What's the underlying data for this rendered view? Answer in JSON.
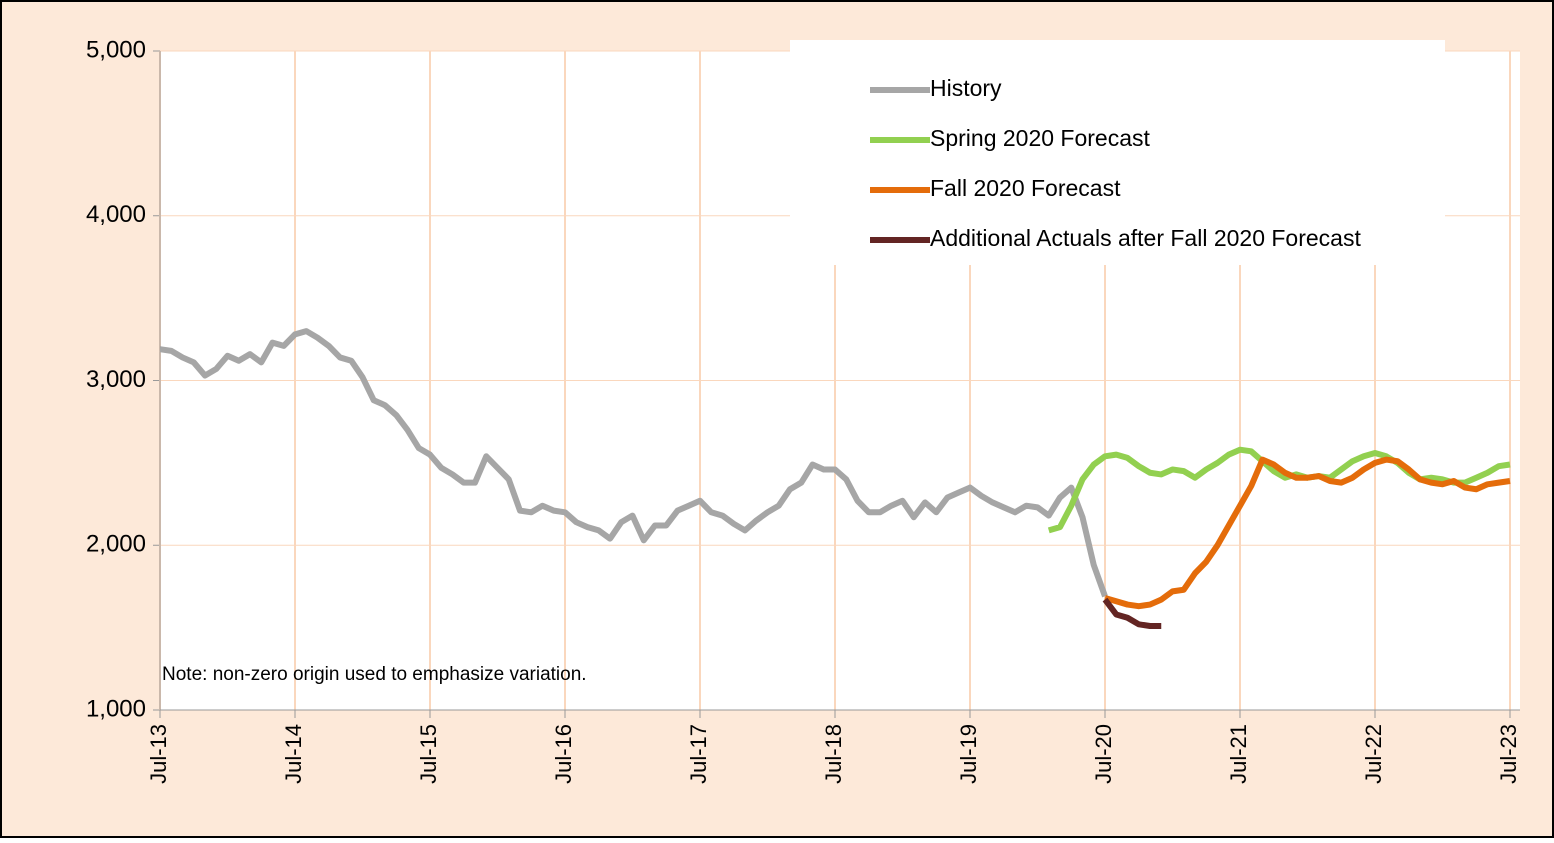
{
  "chart_data": {
    "type": "line",
    "annotation": "Note: non-zero origin used to emphasize variation.",
    "categories": [
      "Jul-13",
      null,
      null,
      null,
      null,
      null,
      null,
      null,
      null,
      null,
      null,
      null,
      "Jul-14",
      null,
      null,
      null,
      null,
      null,
      null,
      null,
      null,
      null,
      null,
      null,
      "Jul-15",
      null,
      null,
      null,
      null,
      null,
      null,
      null,
      null,
      null,
      null,
      null,
      "Jul-16",
      null,
      null,
      null,
      null,
      null,
      null,
      null,
      null,
      null,
      null,
      null,
      "Jul-17",
      null,
      null,
      null,
      null,
      null,
      null,
      null,
      null,
      null,
      null,
      null,
      "Jul-18",
      null,
      null,
      null,
      null,
      null,
      null,
      null,
      null,
      null,
      null,
      null,
      "Jul-19",
      null,
      null,
      null,
      null,
      null,
      null,
      null,
      null,
      null,
      null,
      null,
      "Jul-20",
      null,
      null,
      null,
      null,
      null,
      null,
      null,
      null,
      null,
      null,
      null,
      "Jul-21",
      null,
      null,
      null,
      null,
      null,
      null,
      null,
      null,
      null,
      null,
      null,
      "Jul-22",
      null,
      null,
      null,
      null,
      null,
      null,
      null,
      null,
      null,
      null,
      null,
      "Jul-23"
    ],
    "series": [
      {
        "name": "History",
        "color": "#a6a6a6",
        "values": [
          3190,
          3180,
          3140,
          3110,
          3030,
          3070,
          3150,
          3120,
          3160,
          3110,
          3230,
          3210,
          3280,
          3300,
          3260,
          3210,
          3140,
          3120,
          3020,
          2880,
          2850,
          2790,
          2700,
          2590,
          2550,
          2470,
          2430,
          2380,
          2380,
          2540,
          2470,
          2400,
          2210,
          2200,
          2240,
          2210,
          2200,
          2140,
          2110,
          2090,
          2040,
          2140,
          2180,
          2030,
          2120,
          2120,
          2210,
          2240,
          2270,
          2200,
          2180,
          2130,
          2090,
          2150,
          2200,
          2240,
          2340,
          2380,
          2490,
          2460,
          2460,
          2400,
          2270,
          2200,
          2200,
          2240,
          2270,
          2170,
          2260,
          2200,
          2290,
          2320,
          2350,
          2300,
          2260,
          2230,
          2200,
          2240,
          2230,
          2180,
          2290,
          2350,
          2170,
          1880,
          1690,
          null,
          null,
          null,
          null,
          null,
          null,
          null,
          null,
          null,
          null,
          null,
          null,
          null,
          null,
          null,
          null,
          null,
          null,
          null,
          null,
          null,
          null,
          null,
          null,
          null,
          null,
          null,
          null,
          null,
          null,
          null,
          null,
          null,
          null,
          null,
          null
        ]
      },
      {
        "name": "Spring 2020 Forecast",
        "color": "#92d050",
        "values": [
          null,
          null,
          null,
          null,
          null,
          null,
          null,
          null,
          null,
          null,
          null,
          null,
          null,
          null,
          null,
          null,
          null,
          null,
          null,
          null,
          null,
          null,
          null,
          null,
          null,
          null,
          null,
          null,
          null,
          null,
          null,
          null,
          null,
          null,
          null,
          null,
          null,
          null,
          null,
          null,
          null,
          null,
          null,
          null,
          null,
          null,
          null,
          null,
          null,
          null,
          null,
          null,
          null,
          null,
          null,
          null,
          null,
          null,
          null,
          null,
          null,
          null,
          null,
          null,
          null,
          null,
          null,
          null,
          null,
          null,
          null,
          null,
          null,
          null,
          null,
          null,
          null,
          null,
          null,
          2090,
          2110,
          2240,
          2400,
          2490,
          2540,
          2550,
          2530,
          2480,
          2440,
          2430,
          2460,
          2450,
          2410,
          2460,
          2500,
          2550,
          2580,
          2570,
          2510,
          2450,
          2410,
          2430,
          2410,
          2420,
          2410,
          2460,
          2510,
          2540,
          2560,
          2540,
          2500,
          2440,
          2400,
          2410,
          2400,
          2380,
          2380,
          2410,
          2440,
          2480,
          2490
        ]
      },
      {
        "name": "Fall 2020 Forecast",
        "color": "#e46c0a",
        "values": [
          null,
          null,
          null,
          null,
          null,
          null,
          null,
          null,
          null,
          null,
          null,
          null,
          null,
          null,
          null,
          null,
          null,
          null,
          null,
          null,
          null,
          null,
          null,
          null,
          null,
          null,
          null,
          null,
          null,
          null,
          null,
          null,
          null,
          null,
          null,
          null,
          null,
          null,
          null,
          null,
          null,
          null,
          null,
          null,
          null,
          null,
          null,
          null,
          null,
          null,
          null,
          null,
          null,
          null,
          null,
          null,
          null,
          null,
          null,
          null,
          null,
          null,
          null,
          null,
          null,
          null,
          null,
          null,
          null,
          null,
          null,
          null,
          null,
          null,
          null,
          null,
          null,
          null,
          null,
          null,
          null,
          null,
          null,
          null,
          1680,
          1660,
          1640,
          1630,
          1640,
          1670,
          1720,
          1730,
          1830,
          1900,
          2000,
          2120,
          2240,
          2360,
          2520,
          2490,
          2440,
          2410,
          2410,
          2420,
          2390,
          2380,
          2410,
          2460,
          2500,
          2520,
          2510,
          2460,
          2400,
          2380,
          2370,
          2390,
          2350,
          2340,
          2370,
          2380,
          2390
        ]
      },
      {
        "name": "Additional Actuals after Fall 2020 Forecast",
        "color": "#632523",
        "values": [
          null,
          null,
          null,
          null,
          null,
          null,
          null,
          null,
          null,
          null,
          null,
          null,
          null,
          null,
          null,
          null,
          null,
          null,
          null,
          null,
          null,
          null,
          null,
          null,
          null,
          null,
          null,
          null,
          null,
          null,
          null,
          null,
          null,
          null,
          null,
          null,
          null,
          null,
          null,
          null,
          null,
          null,
          null,
          null,
          null,
          null,
          null,
          null,
          null,
          null,
          null,
          null,
          null,
          null,
          null,
          null,
          null,
          null,
          null,
          null,
          null,
          null,
          null,
          null,
          null,
          null,
          null,
          null,
          null,
          null,
          null,
          null,
          null,
          null,
          null,
          null,
          null,
          null,
          null,
          null,
          null,
          null,
          null,
          null,
          1670,
          1580,
          1560,
          1520,
          1510,
          1510,
          null,
          null,
          null,
          null,
          null,
          null,
          null,
          null,
          null,
          null,
          null,
          null,
          null,
          null,
          null,
          null,
          null,
          null,
          null,
          null,
          null,
          null,
          null,
          null,
          null,
          null,
          null,
          null,
          null,
          null,
          null
        ]
      }
    ],
    "ylim": [
      1000,
      5000
    ],
    "yticks": [
      {
        "value": 1000,
        "label": "1,000"
      },
      {
        "value": 2000,
        "label": "2,000"
      },
      {
        "value": 3000,
        "label": "3,000"
      },
      {
        "value": 4000,
        "label": "4,000"
      },
      {
        "value": 5000,
        "label": "5,000"
      }
    ],
    "grid": true,
    "grid_color": "#fad7bd",
    "background": "#fde9d9",
    "legend": "upper right"
  }
}
